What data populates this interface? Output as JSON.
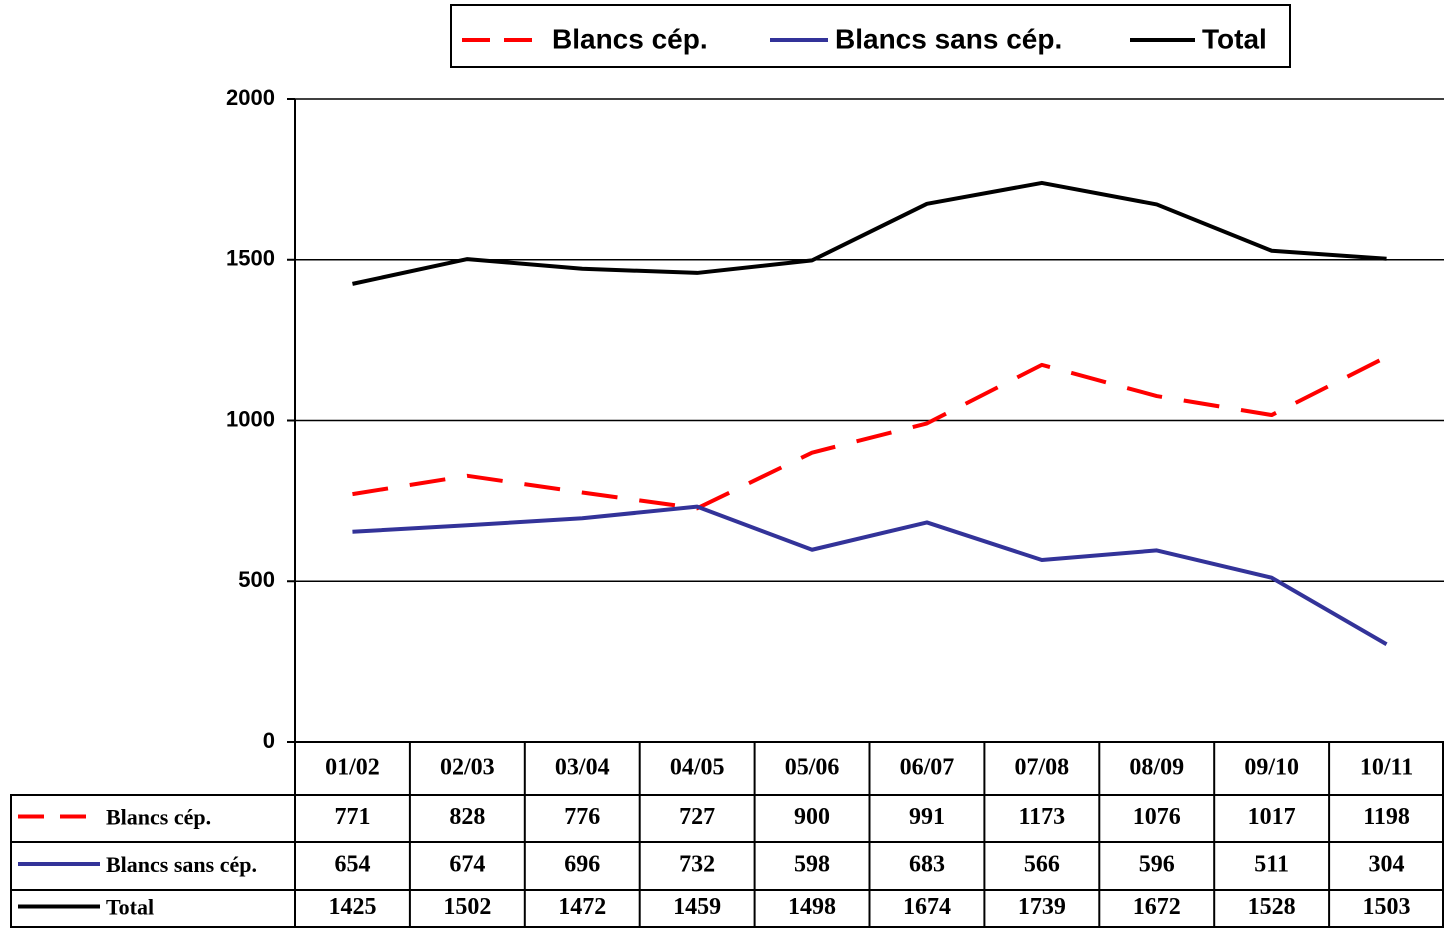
{
  "chart_data": {
    "type": "line",
    "categories": [
      "01/02",
      "02/03",
      "03/04",
      "04/05",
      "05/06",
      "06/07",
      "07/08",
      "08/09",
      "09/10",
      "10/11"
    ],
    "series": [
      {
        "name": "Blancs cép.",
        "color": "#ff0000",
        "dashed": true,
        "values": [
          771,
          828,
          776,
          727,
          900,
          991,
          1173,
          1076,
          1017,
          1198
        ]
      },
      {
        "name": "Blancs sans cép.",
        "color": "#333399",
        "values": [
          654,
          674,
          696,
          732,
          598,
          683,
          566,
          596,
          511,
          304
        ]
      },
      {
        "name": "Total",
        "color": "#000000",
        "values": [
          1425,
          1502,
          1472,
          1459,
          1498,
          1674,
          1739,
          1672,
          1528,
          1503
        ]
      }
    ],
    "ylim": [
      0,
      2000
    ],
    "yticks": [
      0,
      500,
      1000,
      1500,
      2000
    ],
    "grid": true,
    "legend": "top",
    "data_table": true
  }
}
